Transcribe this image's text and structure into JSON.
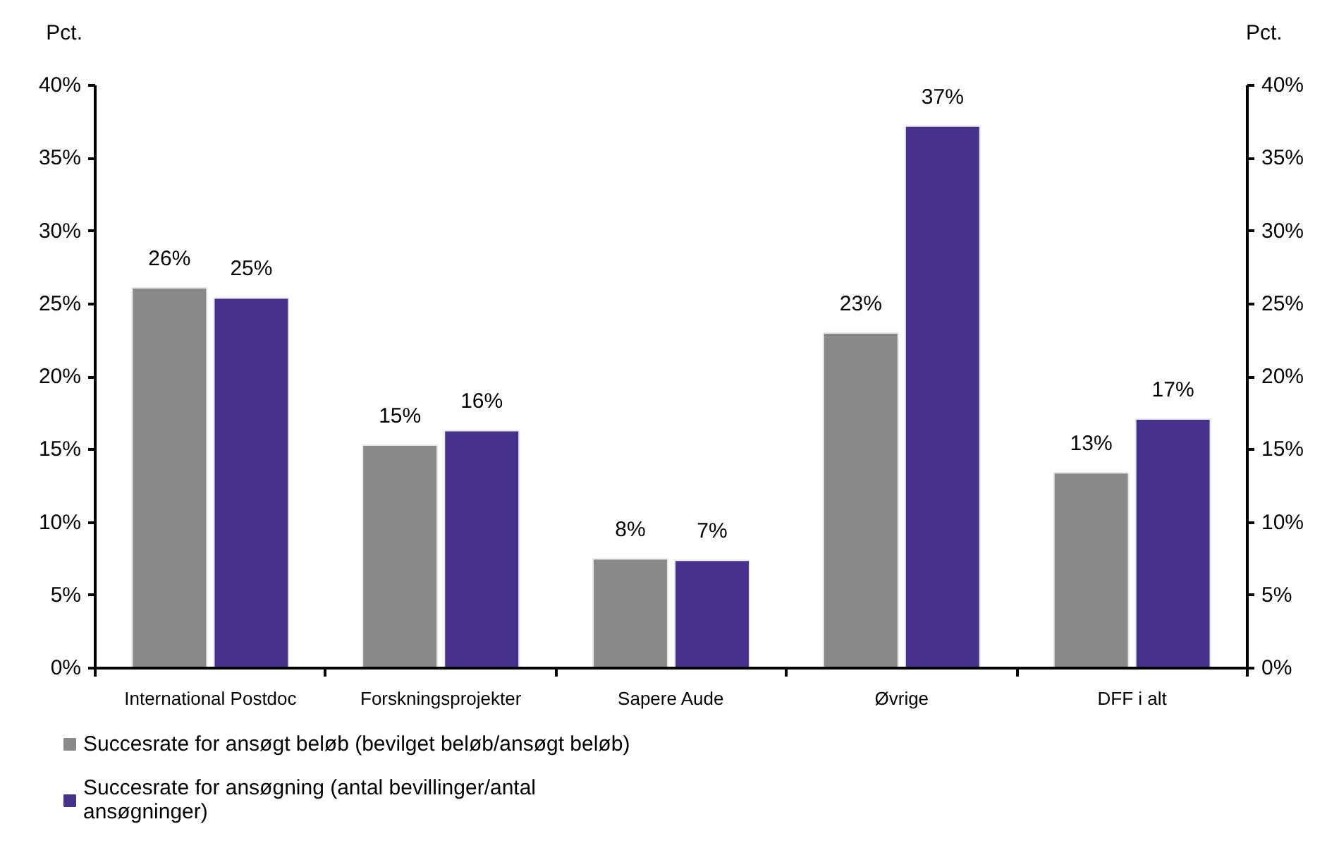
{
  "chart_data": {
    "type": "bar",
    "ylabel": "Pct.",
    "y2label": "Pct.",
    "categories": [
      "International Postdoc",
      "Forskningsprojekter",
      "Sapere Aude",
      "Øvrige",
      "DFF i alt"
    ],
    "series": [
      {
        "name": "Succesrate for ansøgt beløb (bevilget beløb/ansøgt beløb)",
        "color": "#898989",
        "values": [
          26.1,
          15.3,
          7.5,
          23.0,
          13.4
        ],
        "value_labels": [
          "26%",
          "15%",
          "8%",
          "23%",
          "13%"
        ]
      },
      {
        "name": "Succesrate for ansøgning (antal bevillinger/antal ansøgninger)",
        "color": "#46328a",
        "values": [
          25.4,
          16.3,
          7.4,
          37.2,
          17.1
        ],
        "value_labels": [
          "25%",
          "16%",
          "7%",
          "37%",
          "17%"
        ]
      }
    ],
    "ylim": [
      0,
      40
    ],
    "yticks": [
      {
        "value": 0,
        "label": "0%"
      },
      {
        "value": 5,
        "label": "5%"
      },
      {
        "value": 10,
        "label": "10%"
      },
      {
        "value": 15,
        "label": "15%"
      },
      {
        "value": 20,
        "label": "20%"
      },
      {
        "value": 25,
        "label": "25%"
      },
      {
        "value": 30,
        "label": "30%"
      },
      {
        "value": 35,
        "label": "35%"
      },
      {
        "value": 40,
        "label": "40%"
      }
    ],
    "y2lim": [
      0,
      40
    ],
    "y2ticks": [
      {
        "value": 0,
        "label": "0%"
      },
      {
        "value": 5,
        "label": "5%"
      },
      {
        "value": 10,
        "label": "10%"
      },
      {
        "value": 15,
        "label": "15%"
      },
      {
        "value": 20,
        "label": "20%"
      },
      {
        "value": 25,
        "label": "25%"
      },
      {
        "value": 30,
        "label": "30%"
      },
      {
        "value": 35,
        "label": "35%"
      },
      {
        "value": 40,
        "label": "40%"
      }
    ],
    "grid": false,
    "legend": "bottom"
  }
}
